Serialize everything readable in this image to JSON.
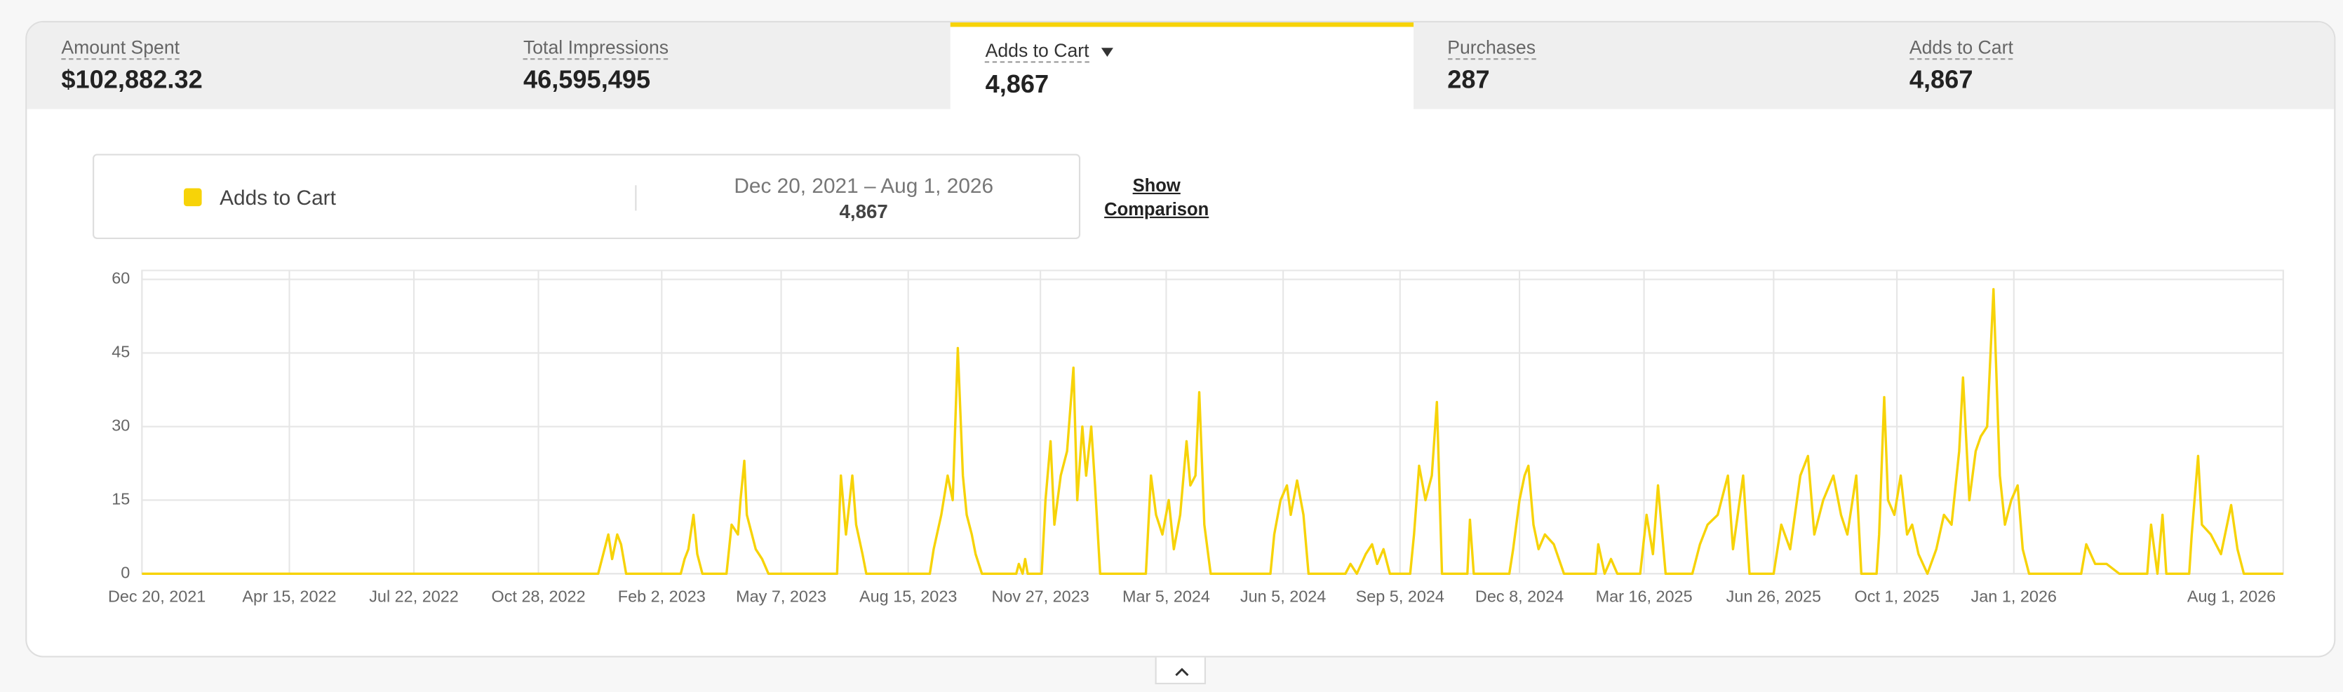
{
  "tabs": [
    {
      "label": "Amount Spent",
      "value": "$102,882.32"
    },
    {
      "label": "Total Impressions",
      "value": "46,595,495"
    },
    {
      "label": "Adds to Cart",
      "value": "4,867"
    },
    {
      "label": "Purchases",
      "value": "287"
    },
    {
      "label": "Adds to Cart",
      "value": "4,867"
    }
  ],
  "selected_tab": 2,
  "summary": {
    "range": "Dec 20, 2021 – Aug 1, 2026",
    "total": "4,867"
  },
  "comparison_link": "Show Comparison",
  "chart_data": {
    "type": "line",
    "x": [
      "2021-12-20",
      "2022-12-14",
      "2022-12-22",
      "2022-12-25",
      "2022-12-29",
      "2023-01-01",
      "2023-01-05",
      "2023-02-17",
      "2023-02-20",
      "2023-02-23",
      "2023-02-27",
      "2023-03-02",
      "2023-03-06",
      "2023-03-25",
      "2023-03-29",
      "2023-04-03",
      "2023-04-05",
      "2023-04-08",
      "2023-04-10",
      "2023-04-14",
      "2023-04-17",
      "2023-04-22",
      "2023-04-27",
      "2023-06-20",
      "2023-06-23",
      "2023-06-27",
      "2023-07-02",
      "2023-07-05",
      "2023-07-10",
      "2023-07-13",
      "2023-09-01",
      "2023-09-04",
      "2023-09-10",
      "2023-09-15",
      "2023-09-19",
      "2023-09-23",
      "2023-09-27",
      "2023-09-30",
      "2023-10-04",
      "2023-10-07",
      "2023-10-12",
      "2023-11-08",
      "2023-11-10",
      "2023-11-13",
      "2023-11-15",
      "2023-11-17",
      "2023-11-28",
      "2023-12-01",
      "2023-12-05",
      "2023-12-08",
      "2023-12-13",
      "2023-12-18",
      "2023-12-23",
      "2023-12-26",
      "2023-12-30",
      "2024-01-02",
      "2024-01-06",
      "2024-01-09",
      "2024-01-13",
      "2024-02-18",
      "2024-02-22",
      "2024-02-26",
      "2024-03-02",
      "2024-03-07",
      "2024-03-11",
      "2024-03-16",
      "2024-03-21",
      "2024-03-24",
      "2024-03-28",
      "2024-03-31",
      "2024-04-04",
      "2024-04-09",
      "2024-05-26",
      "2024-05-29",
      "2024-06-03",
      "2024-06-08",
      "2024-06-11",
      "2024-06-16",
      "2024-06-21",
      "2024-06-25",
      "2024-07-24",
      "2024-07-28",
      "2024-08-02",
      "2024-08-09",
      "2024-08-14",
      "2024-08-18",
      "2024-08-23",
      "2024-08-28",
      "2024-09-13",
      "2024-09-16",
      "2024-09-20",
      "2024-09-25",
      "2024-09-30",
      "2024-10-04",
      "2024-10-08",
      "2024-10-28",
      "2024-10-30",
      "2024-11-02",
      "2024-11-30",
      "2024-12-03",
      "2024-12-08",
      "2024-12-12",
      "2024-12-15",
      "2024-12-19",
      "2024-12-23",
      "2024-12-28",
      "2025-01-04",
      "2025-01-12",
      "2025-02-06",
      "2025-02-08",
      "2025-02-13",
      "2025-02-18",
      "2025-02-23",
      "2025-03-13",
      "2025-03-18",
      "2025-03-23",
      "2025-03-27",
      "2025-04-02",
      "2025-04-23",
      "2025-04-29",
      "2025-05-05",
      "2025-05-13",
      "2025-05-21",
      "2025-05-25",
      "2025-06-02",
      "2025-06-07",
      "2025-06-26",
      "2025-07-02",
      "2025-07-09",
      "2025-07-17",
      "2025-07-23",
      "2025-07-28",
      "2025-08-04",
      "2025-08-12",
      "2025-08-18",
      "2025-08-23",
      "2025-08-30",
      "2025-09-03",
      "2025-09-15",
      "2025-09-17",
      "2025-09-21",
      "2025-09-24",
      "2025-09-29",
      "2025-10-04",
      "2025-10-09",
      "2025-10-13",
      "2025-10-18",
      "2025-10-25",
      "2025-11-01",
      "2025-11-07",
      "2025-11-13",
      "2025-11-19",
      "2025-11-22",
      "2025-11-27",
      "2025-12-02",
      "2025-12-06",
      "2025-12-11",
      "2025-12-16",
      "2025-12-21",
      "2025-12-25",
      "2025-12-30",
      "2026-01-04",
      "2026-01-08",
      "2026-01-13",
      "2026-02-23",
      "2026-02-27",
      "2026-03-06",
      "2026-03-15",
      "2026-03-25",
      "2026-04-16",
      "2026-04-19",
      "2026-04-24",
      "2026-04-28",
      "2026-05-01",
      "2026-05-19",
      "2026-05-21",
      "2026-05-26",
      "2026-05-29",
      "2026-06-05",
      "2026-06-13",
      "2026-06-21",
      "2026-06-26",
      "2026-07-01",
      "2026-08-01"
    ],
    "series": [
      {
        "name": "Adds to Cart",
        "color": "#f7d308",
        "values": [
          0,
          0,
          8,
          3,
          8,
          6,
          0,
          0,
          3,
          5,
          12,
          4,
          0,
          0,
          10,
          8,
          15,
          23,
          12,
          8,
          5,
          3,
          0,
          0,
          20,
          8,
          20,
          10,
          4,
          0,
          0,
          5,
          12,
          20,
          15,
          46,
          20,
          12,
          8,
          4,
          0,
          0,
          2,
          0,
          3,
          0,
          0,
          15,
          27,
          10,
          20,
          25,
          42,
          15,
          30,
          20,
          30,
          18,
          0,
          0,
          20,
          12,
          8,
          15,
          5,
          12,
          27,
          18,
          20,
          37,
          10,
          0,
          0,
          8,
          15,
          18,
          12,
          19,
          12,
          0,
          0,
          2,
          0,
          4,
          6,
          2,
          5,
          0,
          0,
          8,
          22,
          15,
          20,
          35,
          0,
          0,
          11,
          0,
          0,
          5,
          15,
          20,
          22,
          10,
          5,
          8,
          6,
          0,
          0,
          6,
          0,
          3,
          0,
          0,
          12,
          4,
          18,
          0,
          0,
          6,
          10,
          12,
          20,
          5,
          20,
          0,
          0,
          10,
          5,
          20,
          24,
          8,
          15,
          20,
          12,
          8,
          20,
          0,
          0,
          8,
          36,
          15,
          12,
          20,
          8,
          10,
          4,
          0,
          5,
          12,
          10,
          25,
          40,
          15,
          25,
          28,
          30,
          58,
          20,
          10,
          15,
          18,
          5,
          0,
          0,
          6,
          2,
          2,
          0,
          0,
          10,
          0,
          12,
          0,
          0,
          8,
          24,
          10,
          8,
          4,
          14,
          5,
          0,
          0
        ]
      }
    ],
    "xlim": [
      "2021-12-20",
      "2026-08-01"
    ],
    "xticks": [
      {
        "value": "2021-12-20",
        "label": "Dec 20, 2021"
      },
      {
        "value": "2022-04-15",
        "label": "Apr 15, 2022"
      },
      {
        "value": "2022-07-22",
        "label": "Jul 22, 2022"
      },
      {
        "value": "2022-10-28",
        "label": "Oct 28, 2022"
      },
      {
        "value": "2023-02-02",
        "label": "Feb 2, 2023"
      },
      {
        "value": "2023-05-07",
        "label": "May 7, 2023"
      },
      {
        "value": "2023-08-15",
        "label": "Aug 15, 2023"
      },
      {
        "value": "2023-11-27",
        "label": "Nov 27, 2023"
      },
      {
        "value": "2024-03-05",
        "label": "Mar 5, 2024"
      },
      {
        "value": "2024-06-05",
        "label": "Jun 5, 2024"
      },
      {
        "value": "2024-09-05",
        "label": "Sep 5, 2024"
      },
      {
        "value": "2024-12-08",
        "label": "Dec 8, 2024"
      },
      {
        "value": "2025-03-16",
        "label": "Mar 16, 2025"
      },
      {
        "value": "2025-06-26",
        "label": "Jun 26, 2025"
      },
      {
        "value": "2025-10-01",
        "label": "Oct 1, 2025"
      },
      {
        "value": "2026-01-01",
        "label": "Jan 1, 2026"
      },
      {
        "value": "2026-08-01",
        "label": "Aug 1, 2026"
      }
    ],
    "ylim": [
      0,
      60
    ],
    "yticks": [
      0,
      15,
      30,
      45,
      60
    ],
    "grid": true
  }
}
